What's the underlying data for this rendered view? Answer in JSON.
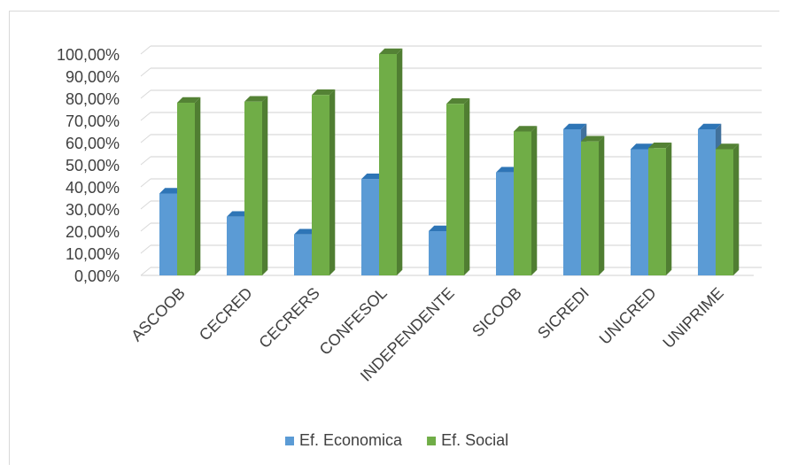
{
  "chart_data": {
    "type": "bar",
    "title": "",
    "xlabel": "",
    "ylabel": "",
    "categories": [
      "ASCOOB",
      "CECRED",
      "CECRERS",
      "CONFESOL",
      "INDEPENDENTE",
      "SICOOB",
      "SICREDI",
      "UNICRED",
      "UNIPRIME"
    ],
    "series": [
      {
        "name": "Ef. Economica",
        "color": "#5b9bd5",
        "side_color": "#41719c",
        "top_color": "#2e75b6",
        "values": [
          37.0,
          26.5,
          18.5,
          43.5,
          20.0,
          46.5,
          66.0,
          57.0,
          66.0
        ]
      },
      {
        "name": "Ef. Social",
        "color": "#70ad47",
        "side_color": "#507e32",
        "top_color": "#548235",
        "values": [
          78.0,
          78.5,
          81.5,
          100.0,
          77.5,
          65.0,
          60.5,
          57.5,
          57.0
        ]
      }
    ],
    "ylim": [
      0,
      100
    ],
    "yticks": [
      "0,00%",
      "10,00%",
      "20,00%",
      "30,00%",
      "40,00%",
      "50,00%",
      "60,00%",
      "70,00%",
      "80,00%",
      "90,00%",
      "100,00%"
    ],
    "grid": true,
    "legend_position": "bottom"
  }
}
